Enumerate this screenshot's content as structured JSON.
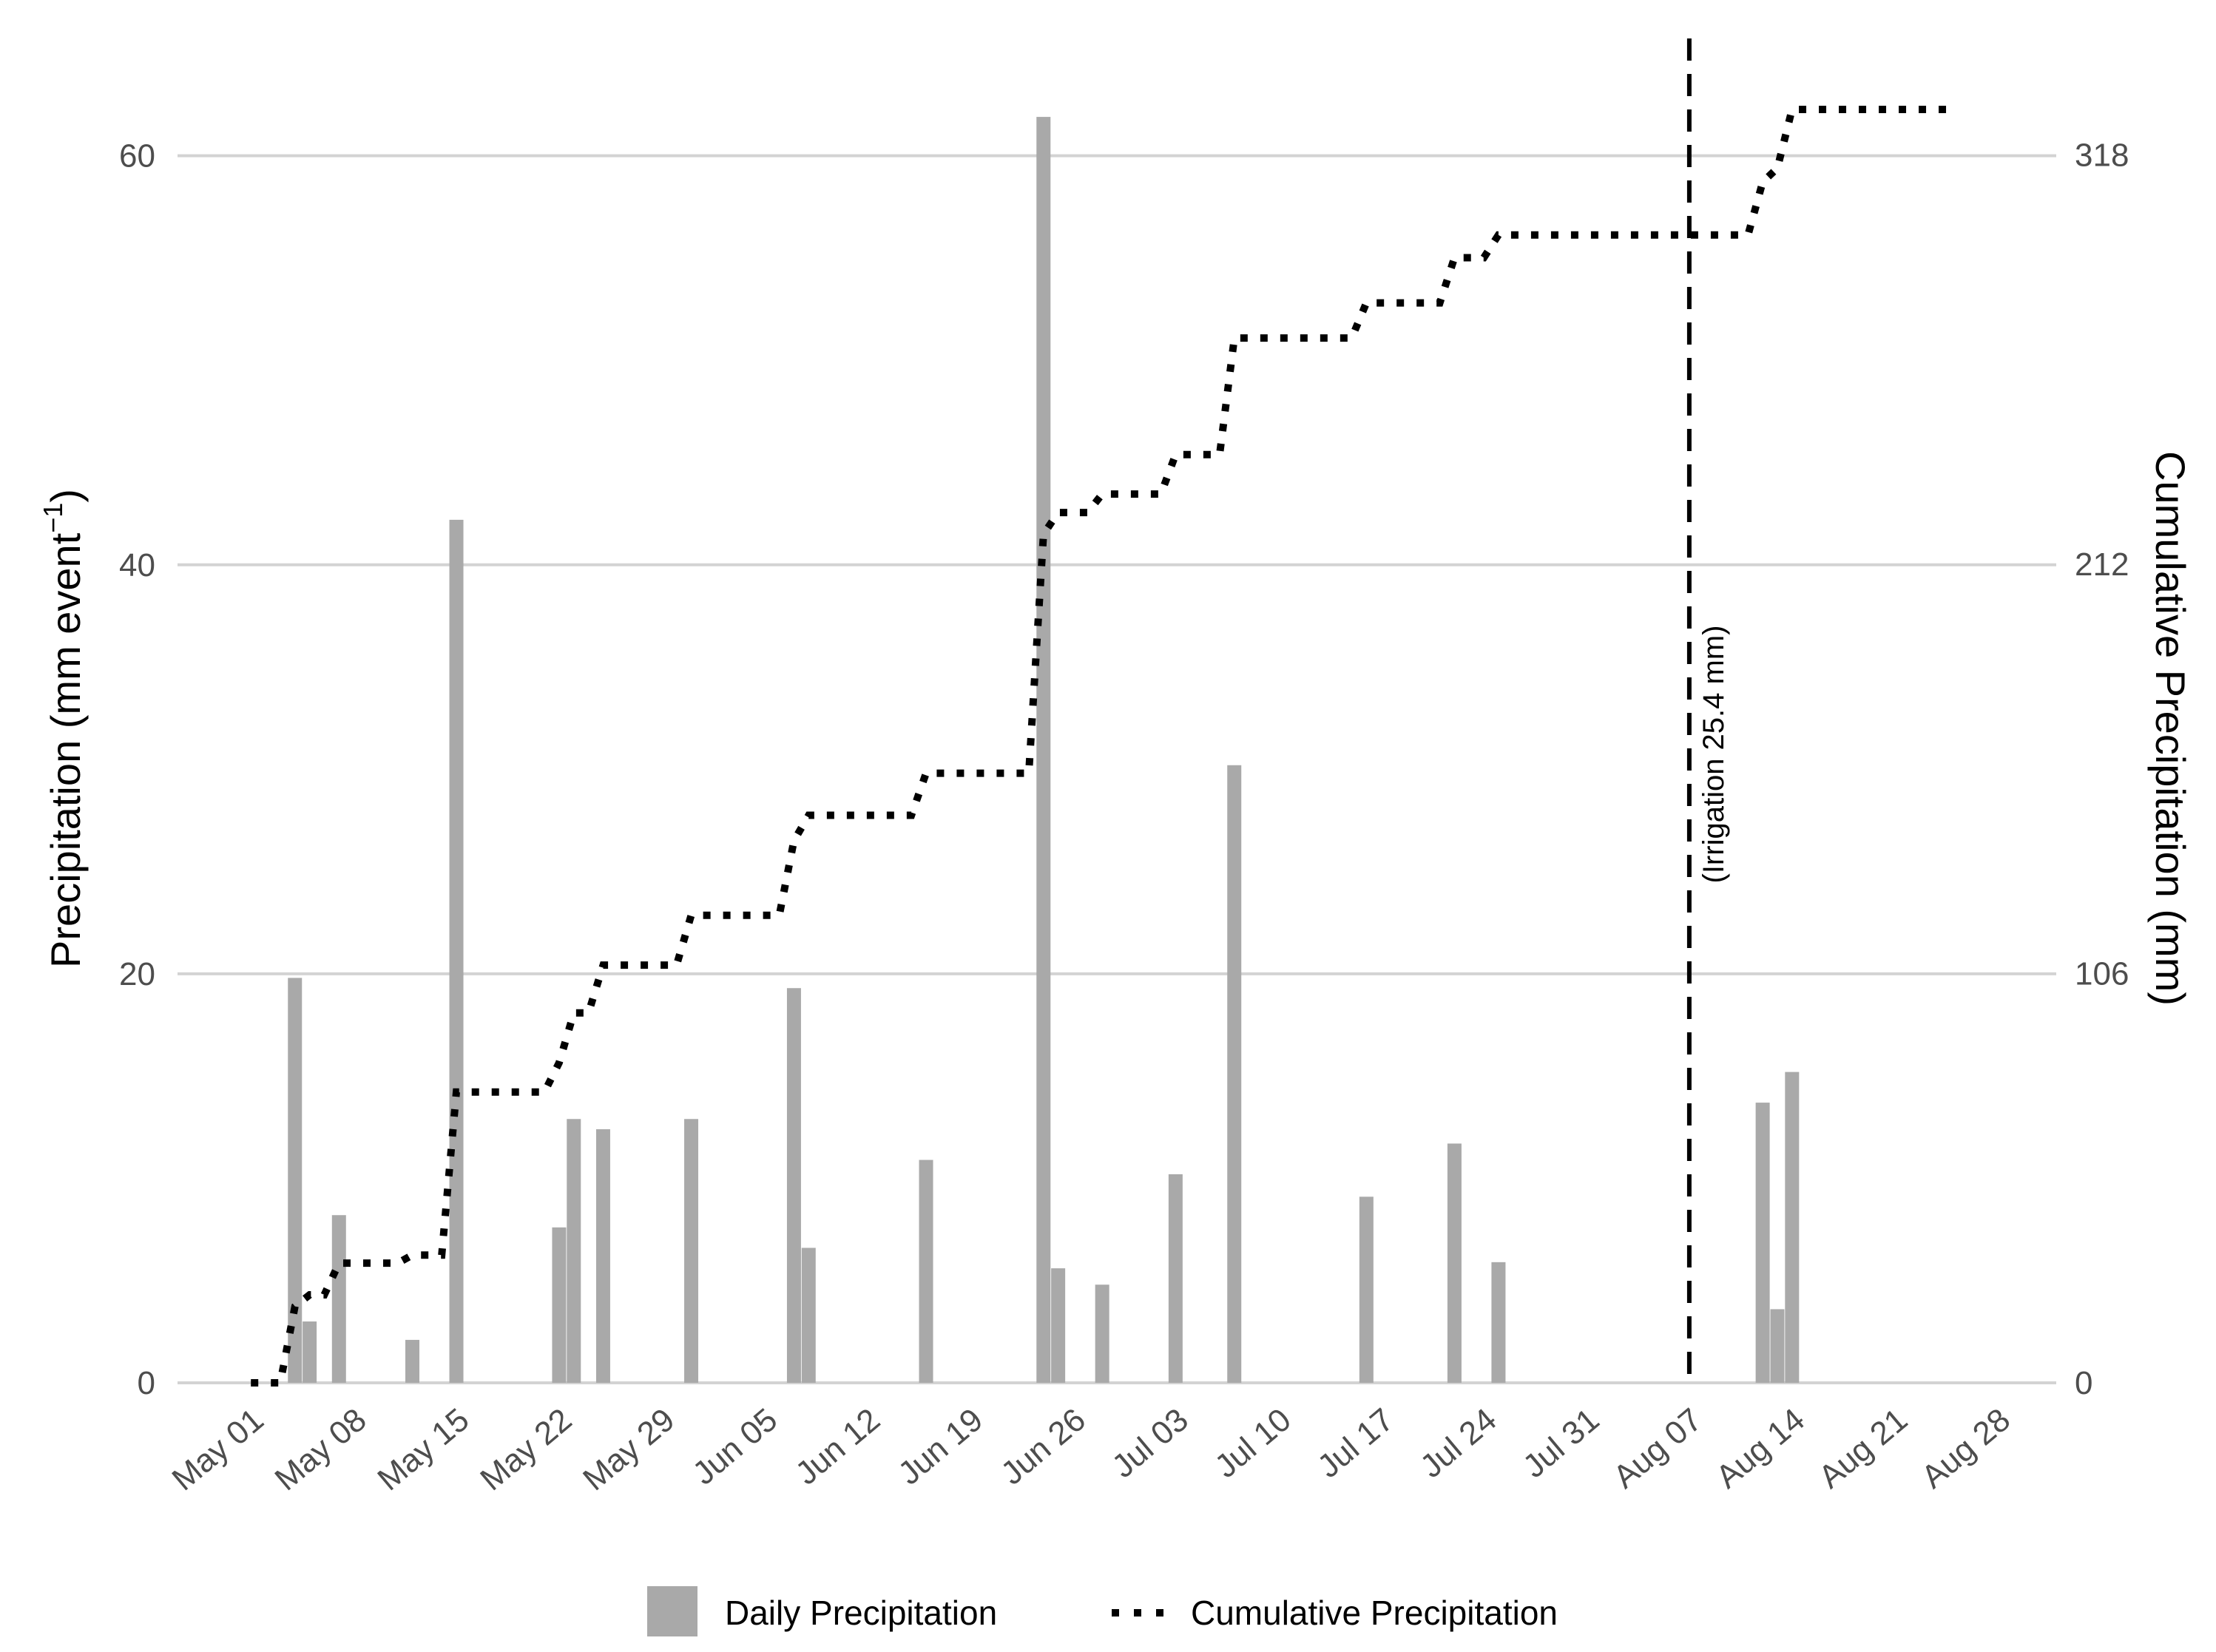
{
  "chart_data": {
    "type": "bar",
    "colors": {
      "bar": "#a9a9a9",
      "cumulative": "#000000",
      "grid": "#d3d3d3",
      "irrigation_line": "#000000"
    },
    "x_axis": {
      "type": "date",
      "ticks": [
        "May 01",
        "May 08",
        "May 15",
        "May 22",
        "May 29",
        "Jun 05",
        "Jun 12",
        "Jun 19",
        "Jun 26",
        "Jul 03",
        "Jul 10",
        "Jul 17",
        "Jul 24",
        "Jul 31",
        "Aug 07",
        "Aug 14",
        "Aug 21",
        "Aug 28"
      ],
      "tick_dates": [
        "05-01",
        "05-08",
        "05-15",
        "05-22",
        "05-29",
        "06-05",
        "06-12",
        "06-19",
        "06-26",
        "07-03",
        "07-10",
        "07-17",
        "07-24",
        "07-31",
        "08-07",
        "08-14",
        "08-21",
        "08-28"
      ],
      "range": [
        "04-26",
        "09-01"
      ]
    },
    "y_left": {
      "label_main": "Precipitation (mm event",
      "label_sup": "−1",
      "label_close": ")",
      "ticks": [
        "0",
        "20",
        "40",
        "60"
      ],
      "tick_values": [
        0,
        20,
        40,
        60
      ],
      "range": [
        0,
        64
      ]
    },
    "y_right": {
      "label": "Cumulative Precipitation (mm)",
      "ticks": [
        "0",
        "106",
        "212",
        "318"
      ],
      "tick_values": [
        0,
        106,
        212,
        318
      ],
      "range": [
        0,
        339
      ]
    },
    "grid": true,
    "daily": [
      {
        "date": "05-04",
        "value": 19.8
      },
      {
        "date": "05-05",
        "value": 3.0
      },
      {
        "date": "05-07",
        "value": 8.2
      },
      {
        "date": "05-12",
        "value": 2.1
      },
      {
        "date": "05-15",
        "value": 42.2
      },
      {
        "date": "05-22",
        "value": 7.6
      },
      {
        "date": "05-23",
        "value": 12.9
      },
      {
        "date": "05-25",
        "value": 12.4
      },
      {
        "date": "05-31",
        "value": 12.9
      },
      {
        "date": "06-07",
        "value": 19.3
      },
      {
        "date": "06-08",
        "value": 6.6
      },
      {
        "date": "06-16",
        "value": 10.9
      },
      {
        "date": "06-24",
        "value": 61.9
      },
      {
        "date": "06-25",
        "value": 5.6
      },
      {
        "date": "06-28",
        "value": 4.8
      },
      {
        "date": "07-03",
        "value": 10.2
      },
      {
        "date": "07-07",
        "value": 30.2
      },
      {
        "date": "07-16",
        "value": 9.1
      },
      {
        "date": "07-22",
        "value": 11.7
      },
      {
        "date": "07-25",
        "value": 5.9
      },
      {
        "date": "08-12",
        "value": 13.7
      },
      {
        "date": "08-13",
        "value": 3.6
      },
      {
        "date": "08-14",
        "value": 15.2
      }
    ],
    "cumulative": {
      "start": "05-01",
      "end": "08-25",
      "start_value": 0,
      "dashed_to": "08-14"
    },
    "irrigation": {
      "date": "08-07",
      "label": "(Irrigation 25.4 mm)"
    },
    "legend": {
      "position": "bottom",
      "items": [
        {
          "label": "Daily Precipitation",
          "kind": "bar"
        },
        {
          "label": "Cumulative Precipitation",
          "kind": "dots"
        }
      ]
    }
  }
}
